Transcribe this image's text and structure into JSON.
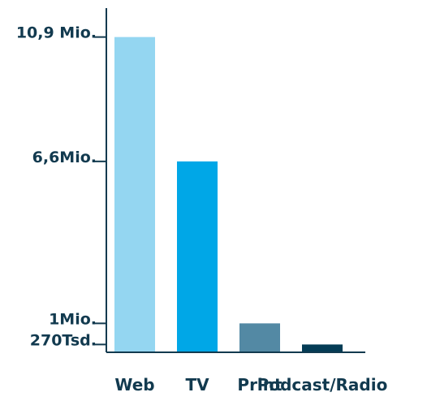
{
  "chart_data": {
    "type": "bar",
    "categories": [
      "Web",
      "TV",
      "Print",
      "Podcast/Radio"
    ],
    "values": [
      10900000,
      6600000,
      1000000,
      270000
    ],
    "series_colors": [
      "#94d6f1",
      "#00a7e7",
      "#5389a4",
      "#043c55"
    ],
    "ylim": [
      0,
      11900000
    ],
    "yticks": [
      {
        "value": 10900000,
        "label": "10,9 Mio."
      },
      {
        "value": 6600000,
        "label": "6,6Mio."
      },
      {
        "value": 1000000,
        "label": "1Mio."
      },
      {
        "value": 270000,
        "label": "270Tsd."
      }
    ],
    "xlabel": "",
    "ylabel": "",
    "title": "",
    "grid": false,
    "legend": "none",
    "axis_color": "#123a4f",
    "text_color": "#123a4f"
  }
}
